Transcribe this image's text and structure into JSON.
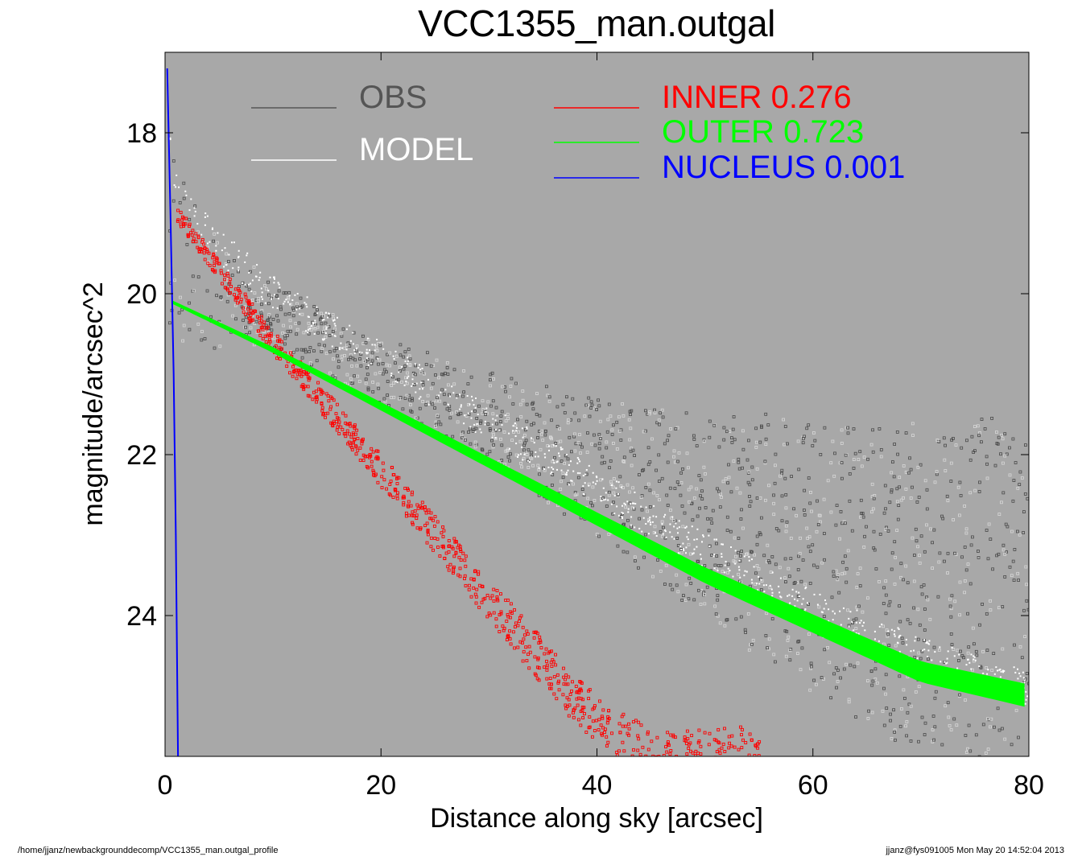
{
  "chart_data": {
    "type": "scatter",
    "title": "VCC1355_man.outgal",
    "xlabel": "Distance along sky [arcsec]",
    "ylabel": "magnitude/arcsec^2",
    "xlim": [
      0,
      80
    ],
    "ylim": [
      25.75,
      17.0
    ],
    "y_inverted": true,
    "xticks": [
      "0",
      "20",
      "40",
      "60",
      "80"
    ],
    "yticks": [
      "18",
      "20",
      "22",
      "24"
    ],
    "background": "#a8a8a8",
    "grid": false,
    "series": [
      {
        "name": "OBS",
        "color": "#555555",
        "description_points": [
          [
            0.3,
            17.8
          ],
          [
            2,
            18.7
          ],
          [
            5,
            19.3
          ],
          [
            10,
            19.9
          ],
          [
            20,
            20.6
          ],
          [
            30,
            21.0
          ],
          [
            40,
            21.3
          ],
          [
            50,
            21.5
          ],
          [
            60,
            21.6
          ],
          [
            70,
            21.6
          ],
          [
            80,
            21.6
          ]
        ],
        "scatter_lower_edge": [
          [
            10,
            20.6
          ],
          [
            20,
            21.4
          ],
          [
            30,
            22.1
          ],
          [
            40,
            23.0
          ],
          [
            50,
            24.0
          ],
          [
            60,
            25.0
          ],
          [
            70,
            25.75
          ]
        ]
      },
      {
        "name": "MODEL",
        "color": "#ffffff",
        "points": [
          [
            0.2,
            17.2
          ],
          [
            0.5,
            18.2
          ],
          [
            1,
            18.6
          ],
          [
            2,
            18.9
          ],
          [
            5,
            19.4
          ],
          [
            10,
            20.0
          ],
          [
            20,
            20.8
          ],
          [
            30,
            21.6
          ],
          [
            40,
            22.4
          ],
          [
            50,
            23.2
          ],
          [
            60,
            23.9
          ],
          [
            70,
            24.5
          ],
          [
            80,
            24.9
          ]
        ]
      },
      {
        "name": "INNER",
        "value_label": "0.276",
        "color": "#ff0000",
        "points": [
          [
            1,
            19.0
          ],
          [
            10,
            20.6
          ],
          [
            20,
            22.2
          ],
          [
            30,
            23.8
          ],
          [
            37,
            24.9
          ],
          [
            40,
            25.3
          ],
          [
            45,
            25.75
          ]
        ],
        "band_width": 0.45
      },
      {
        "name": "OUTER",
        "value_label": "0.723",
        "color": "#00ff00",
        "points": [
          [
            0.6,
            20.1
          ],
          [
            10,
            20.7
          ],
          [
            20,
            21.4
          ],
          [
            30,
            22.1
          ],
          [
            40,
            22.8
          ],
          [
            50,
            23.5
          ],
          [
            60,
            24.1
          ],
          [
            70,
            24.7
          ],
          [
            80,
            25.0
          ]
        ],
        "band_width": 0.25
      },
      {
        "name": "NUCLEUS",
        "value_label": "0.001",
        "color": "#0000ff",
        "points": [
          [
            0.2,
            17.2
          ],
          [
            0.5,
            19.0
          ],
          [
            0.8,
            21.0
          ],
          [
            1.0,
            23.0
          ],
          [
            1.2,
            25.75
          ]
        ]
      }
    ],
    "legend": {
      "placement": "top",
      "entries": [
        {
          "name": "OBS",
          "value": "",
          "color": "#555555"
        },
        {
          "name": "MODEL",
          "value": "",
          "color": "#ffffff"
        },
        {
          "name": "INNER",
          "value": "0.276",
          "color": "#ff0000"
        },
        {
          "name": "OUTER",
          "value": "0.723",
          "color": "#00ff00"
        },
        {
          "name": "NUCLEUS",
          "value": "0.001",
          "color": "#0000ff"
        }
      ]
    }
  },
  "footer": {
    "path": "/home/jjanz/newbackgrounddecomp/VCC1355_man.outgal_profile",
    "stamp": "jjanz@fys091005  Mon May 20 14:52:04 2013"
  }
}
